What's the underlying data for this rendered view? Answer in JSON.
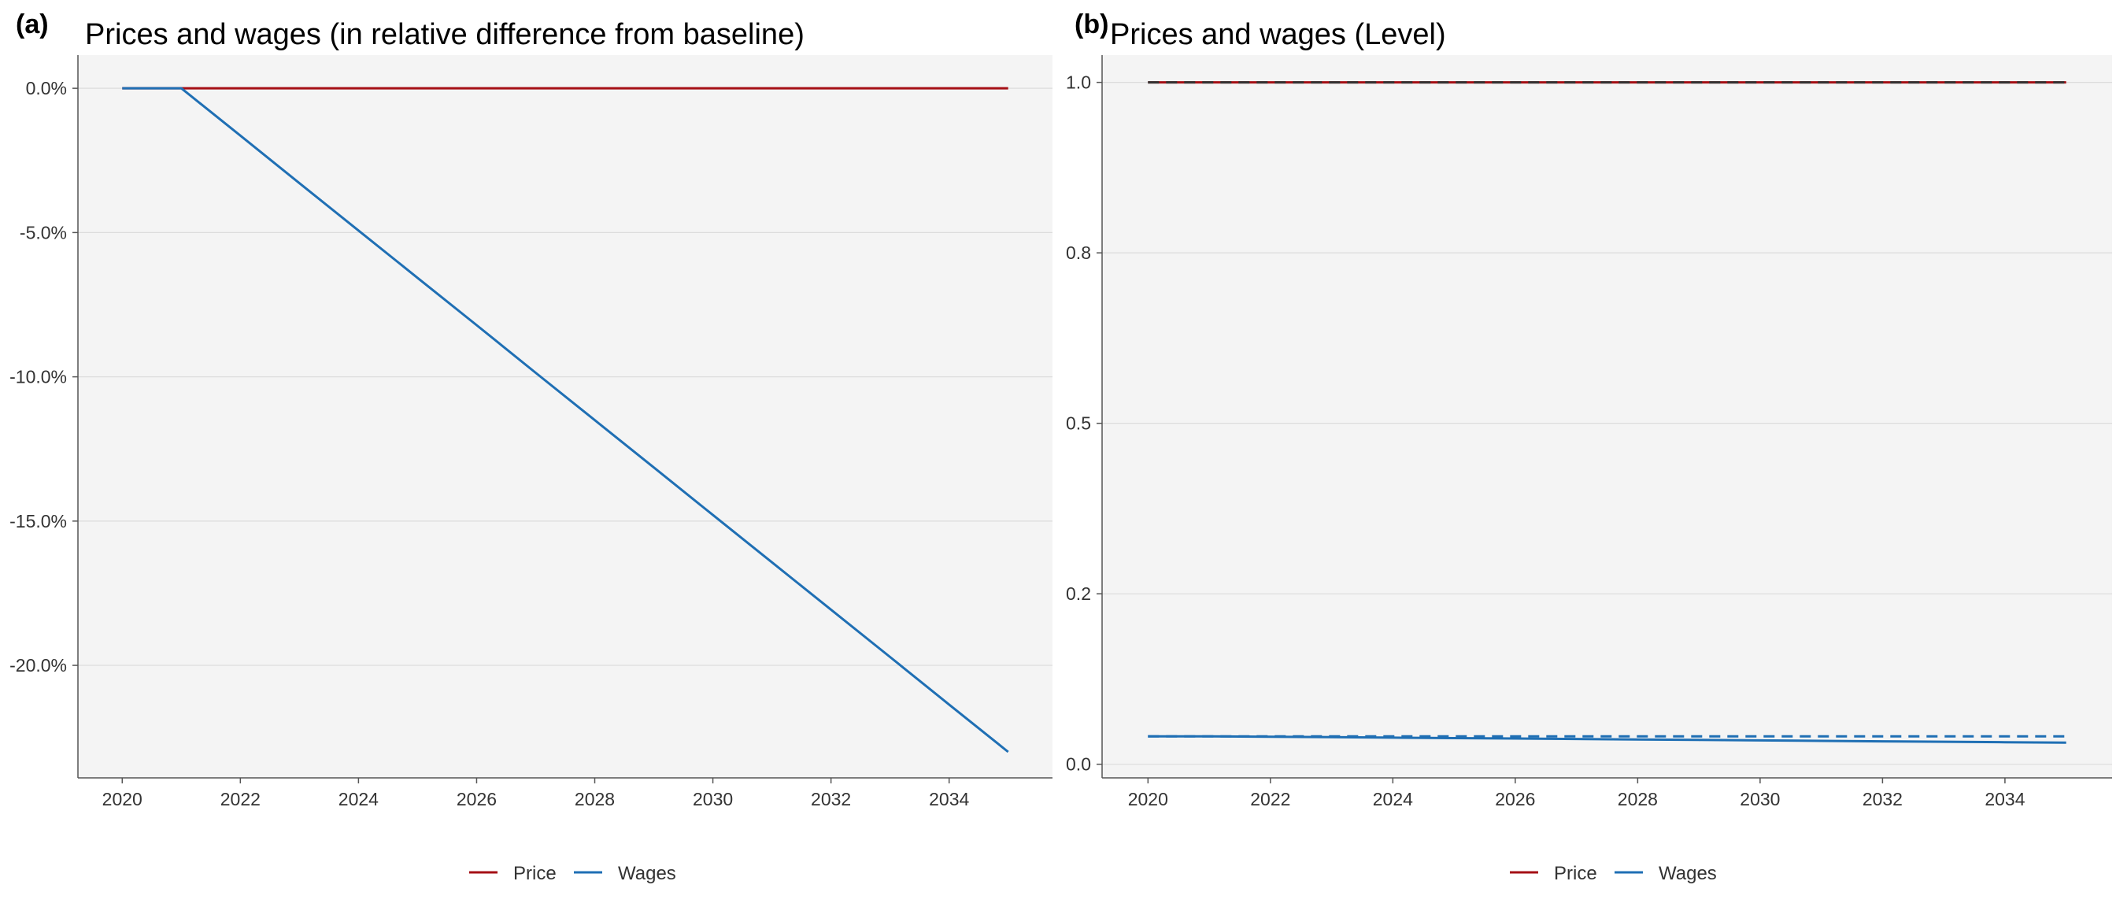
{
  "chart_data": [
    {
      "panel_tag": "(a)",
      "type": "line",
      "title": "Prices and wages (in relative difference from baseline)",
      "xlabel": "",
      "ylabel": "",
      "xlim": [
        2019.25,
        2035.75
      ],
      "ylim": [
        -23.9,
        1.15
      ],
      "x_ticks": [
        2020,
        2022,
        2024,
        2026,
        2028,
        2030,
        2032,
        2034
      ],
      "x_tick_labels": [
        "2020",
        "2022",
        "2024",
        "2026",
        "2028",
        "2030",
        "2032",
        "2034"
      ],
      "y_ticks": [
        0,
        -5,
        -10,
        -15,
        -20
      ],
      "y_tick_labels": [
        "0.0%",
        "-5.0%",
        "-10.0%",
        "-15.0%",
        "-20.0%"
      ],
      "grid": "horizontal",
      "legend_position": "bottom",
      "series": [
        {
          "name": "Price",
          "color": "#a50f15",
          "dash": "solid",
          "x": [
            2020,
            2021,
            2022,
            2023,
            2024,
            2025,
            2026,
            2027,
            2028,
            2029,
            2030,
            2031,
            2032,
            2033,
            2034,
            2035
          ],
          "y": [
            0,
            0,
            0,
            0,
            0,
            0,
            0,
            0,
            0,
            0,
            0,
            0,
            0,
            0,
            0,
            0
          ]
        },
        {
          "name": "Wages",
          "color": "#1f6fb4",
          "dash": "solid",
          "x": [
            2020,
            2021,
            2022,
            2023,
            2024,
            2025,
            2026,
            2027,
            2028,
            2029,
            2030,
            2031,
            2032,
            2033,
            2034,
            2035
          ],
          "y": [
            0,
            0,
            -1.64,
            -3.29,
            -4.93,
            -6.57,
            -8.21,
            -9.86,
            -11.5,
            -13.14,
            -14.79,
            -16.43,
            -18.07,
            -19.71,
            -21.36,
            -23.0
          ]
        }
      ]
    },
    {
      "panel_tag": "(b)",
      "type": "line",
      "title": "Prices and wages (Level)",
      "xlabel": "",
      "ylabel": "",
      "xlim": [
        2019.25,
        2035.75
      ],
      "ylim": [
        -0.02,
        1.04
      ],
      "x_ticks": [
        2020,
        2022,
        2024,
        2026,
        2028,
        2030,
        2032,
        2034
      ],
      "x_tick_labels": [
        "2020",
        "2022",
        "2024",
        "2026",
        "2028",
        "2030",
        "2032",
        "2034"
      ],
      "y_ticks": [
        1.0,
        0.75,
        0.5,
        0.25,
        0.0
      ],
      "y_tick_labels": [
        "1.0",
        "0.8",
        "0.5",
        "0.2",
        "0.0"
      ],
      "grid": "horizontal",
      "legend_position": "bottom",
      "series": [
        {
          "name": "Price",
          "color": "#a50f15",
          "dash": "solid",
          "x": [
            2020,
            2035
          ],
          "y": [
            1.0,
            1.0
          ]
        },
        {
          "name": "",
          "color": "#333333",
          "dash": "dashed",
          "x": [
            2020,
            2035
          ],
          "y": [
            1.0,
            1.0
          ]
        },
        {
          "name": "Wages",
          "color": "#1f6fb4",
          "dash": "solid",
          "x": [
            2020,
            2021,
            2022,
            2023,
            2024,
            2025,
            2026,
            2027,
            2028,
            2029,
            2030,
            2031,
            2032,
            2033,
            2034,
            2035
          ],
          "y": [
            0.041,
            0.041,
            0.0403,
            0.0397,
            0.039,
            0.0383,
            0.0377,
            0.037,
            0.0363,
            0.0356,
            0.035,
            0.0343,
            0.0336,
            0.033,
            0.0323,
            0.0316
          ]
        },
        {
          "name": "",
          "color": "#1f6fb4",
          "dash": "dashed",
          "x": [
            2020,
            2035
          ],
          "y": [
            0.041,
            0.041
          ]
        }
      ]
    }
  ],
  "legends": [
    {
      "items": [
        {
          "label": "Price",
          "color": "#a50f15"
        },
        {
          "label": "Wages",
          "color": "#1f6fb4"
        }
      ]
    },
    {
      "items": [
        {
          "label": "Price",
          "color": "#a50f15"
        },
        {
          "label": "Wages",
          "color": "#1f6fb4"
        }
      ]
    }
  ]
}
